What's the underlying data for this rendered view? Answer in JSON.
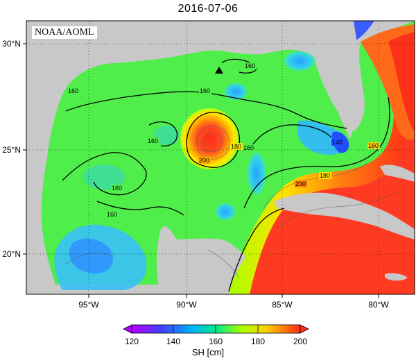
{
  "title": "2016-07-06",
  "credit": "NOAA/AOML",
  "map": {
    "lat_ticks": [
      "30°N",
      "25°N",
      "20°N"
    ],
    "lon_ticks": [
      "95°W",
      "90°W",
      "85°W",
      "80°W"
    ],
    "contour_labels": [
      "160",
      "160",
      "160",
      "160",
      "160",
      "160",
      "180",
      "200",
      "160",
      "180",
      "200",
      "140",
      "160"
    ],
    "buoy_marker": "triangle-icon"
  },
  "colorbar": {
    "ticks": [
      "120",
      "140",
      "160",
      "180",
      "200"
    ],
    "label": "SH [cm]",
    "colors": [
      "#c000ff",
      "#3030ff",
      "#00c8ff",
      "#00f080",
      "#a8ff00",
      "#ffd000",
      "#ff4020"
    ]
  },
  "colors": {
    "land": "#c8c8c8",
    "gulf_green": "#4cf04c",
    "warm_red": "#ff3a2a",
    "cool_blue": "#38b8ff"
  }
}
